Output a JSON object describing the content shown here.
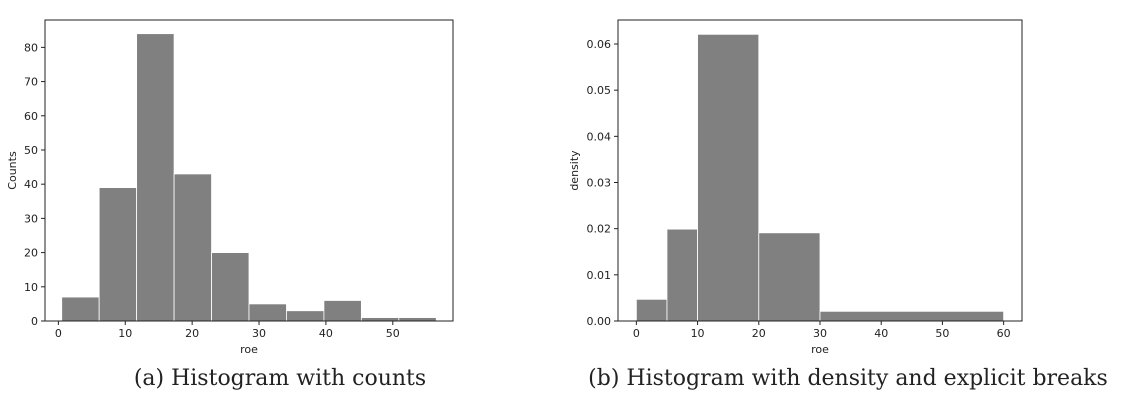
{
  "chart_data": [
    {
      "type": "bar",
      "histogram": true,
      "bin_edges": [
        0.5,
        6.1,
        11.7,
        17.3,
        22.9,
        28.5,
        34.1,
        39.7,
        45.3,
        50.9,
        56.5
      ],
      "values": [
        7,
        39,
        84,
        43,
        20,
        5,
        3,
        6,
        1,
        1
      ],
      "xlabel": "roe",
      "ylabel": "Counts",
      "xlim": [
        -2,
        59
      ],
      "ylim": [
        0,
        88
      ],
      "xticks": [
        0,
        10,
        20,
        30,
        40,
        50
      ],
      "yticks": [
        0,
        10,
        20,
        30,
        40,
        50,
        60,
        70,
        80
      ],
      "bar_color": "#808080",
      "caption": "(a) Histogram with counts"
    },
    {
      "type": "bar",
      "histogram": true,
      "bin_edges": [
        0,
        5,
        10,
        20,
        30,
        60
      ],
      "values": [
        0.0047,
        0.0199,
        0.0621,
        0.0191,
        0.0021
      ],
      "xlabel": "roe",
      "ylabel": "density",
      "xlim": [
        -3,
        63
      ],
      "ylim": [
        0,
        0.0652
      ],
      "xticks": [
        0,
        10,
        20,
        30,
        40,
        50,
        60
      ],
      "yticks": [
        "0.00",
        "0.01",
        "0.02",
        "0.03",
        "0.04",
        "0.05",
        "0.06"
      ],
      "bar_color": "#808080",
      "caption": "(b) Histogram with density and explicit breaks"
    }
  ]
}
